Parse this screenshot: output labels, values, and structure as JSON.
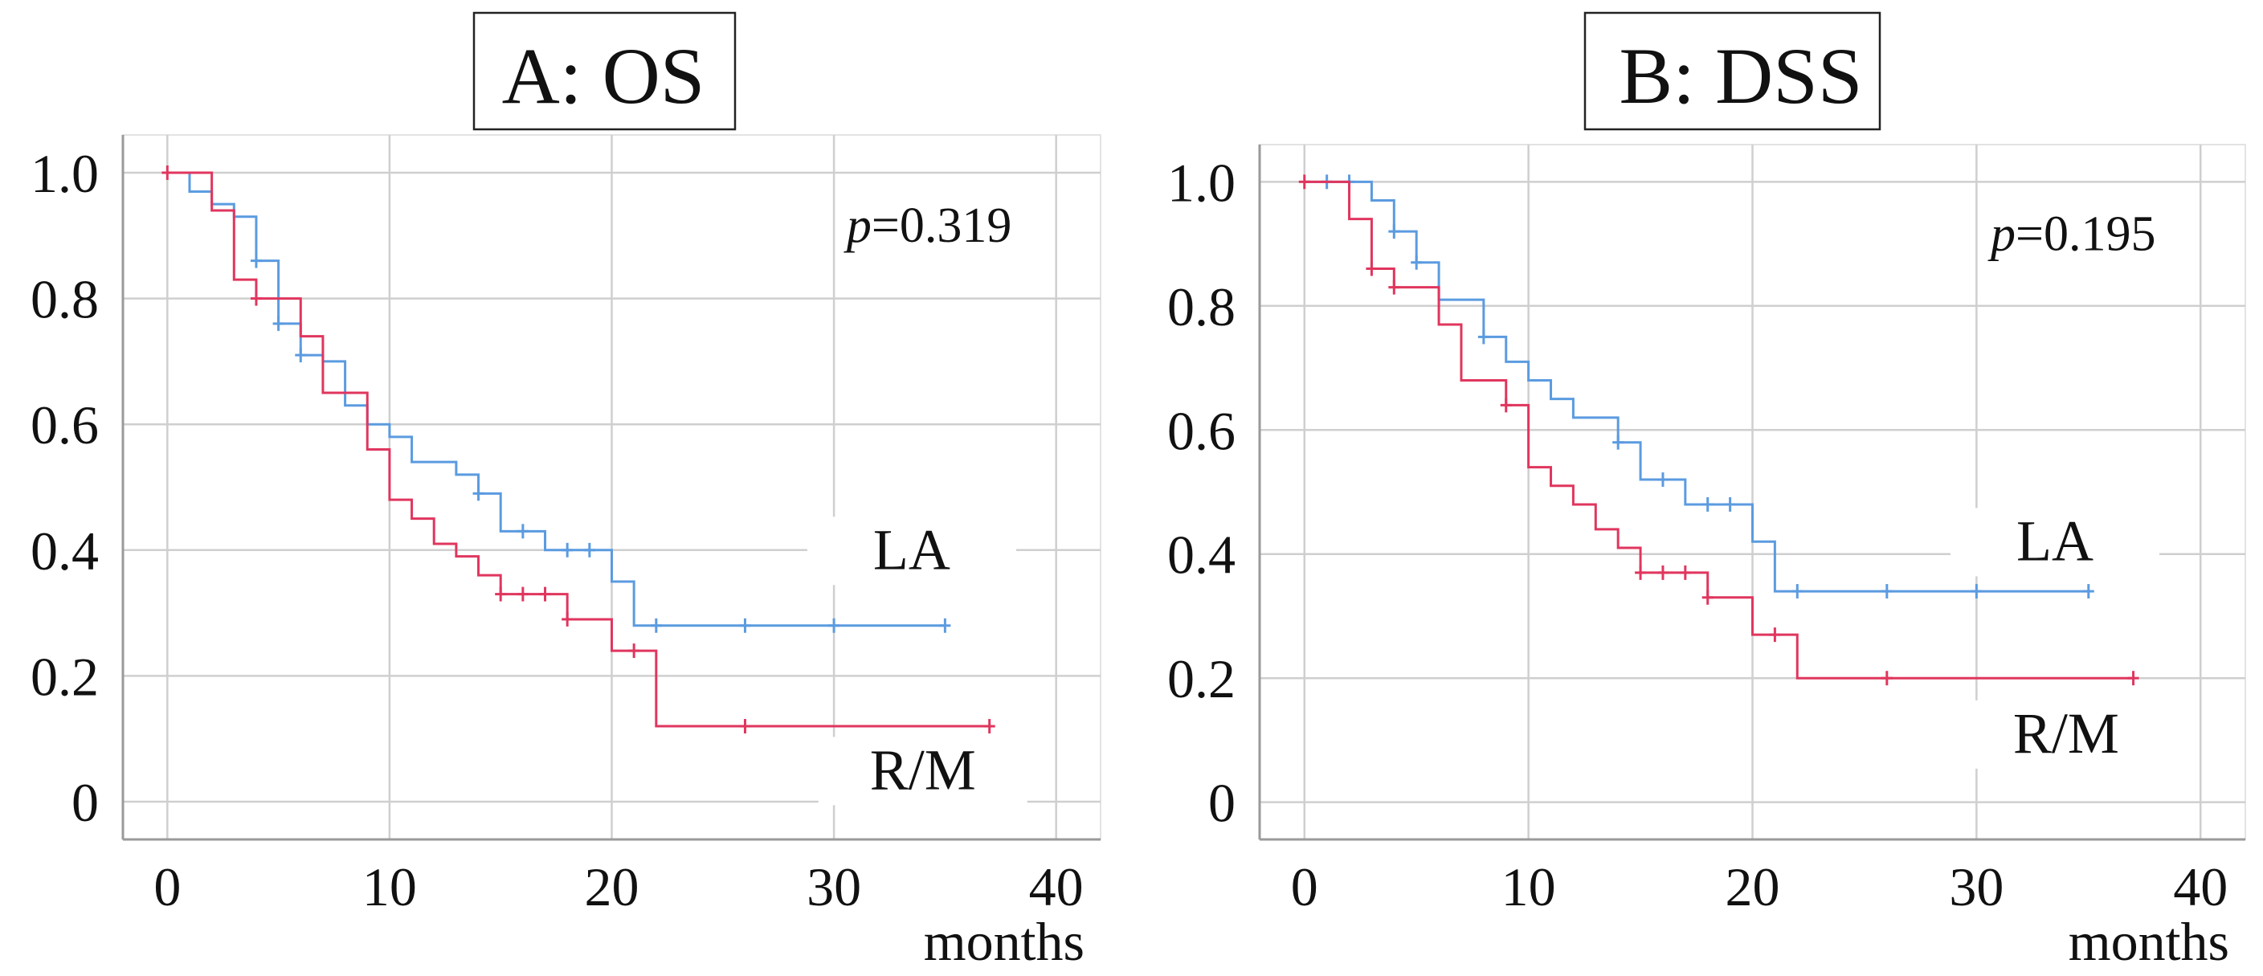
{
  "chart_data": [
    {
      "type": "line",
      "title": "A: OS",
      "xlabel": "months",
      "ylabel": "",
      "xlim": [
        -2,
        42
      ],
      "ylim": [
        -0.06,
        1.06
      ],
      "xticks": [
        0,
        10,
        20,
        30,
        40
      ],
      "yticks": [
        0,
        0.2,
        0.4,
        0.6,
        0.8,
        1.0
      ],
      "ytick_labels": [
        "0",
        "0.2",
        "0.4",
        "0.6",
        "0.8",
        "1.0"
      ],
      "grid": true,
      "annotation": {
        "prefix": "p",
        "text": "=0.319",
        "x": 38,
        "y": 0.89
      },
      "series": [
        {
          "name": "LA",
          "color": "#5b9be0",
          "label_pos": {
            "x": 33.5,
            "y": 0.37
          },
          "steps": [
            [
              0,
              1.0
            ],
            [
              1,
              0.97
            ],
            [
              2,
              0.95
            ],
            [
              3,
              0.93
            ],
            [
              4,
              0.86
            ],
            [
              5,
              0.76
            ],
            [
              6,
              0.71
            ],
            [
              7,
              0.7
            ],
            [
              8,
              0.63
            ],
            [
              9,
              0.6
            ],
            [
              10,
              0.58
            ],
            [
              11,
              0.54
            ],
            [
              13,
              0.52
            ],
            [
              14,
              0.49
            ],
            [
              15,
              0.43
            ],
            [
              17,
              0.4
            ],
            [
              20,
              0.35
            ],
            [
              21,
              0.28
            ],
            [
              35,
              0.28
            ]
          ],
          "censors": [
            [
              4,
              0.86
            ],
            [
              5,
              0.76
            ],
            [
              6,
              0.71
            ],
            [
              14,
              0.49
            ],
            [
              16,
              0.43
            ],
            [
              18,
              0.4
            ],
            [
              19,
              0.4
            ],
            [
              22,
              0.28
            ],
            [
              26,
              0.28
            ],
            [
              30,
              0.28
            ],
            [
              35,
              0.28
            ]
          ]
        },
        {
          "name": "R/M",
          "color": "#e0365e",
          "label_pos": {
            "x": 34,
            "y": 0.02
          },
          "steps": [
            [
              0,
              1.0
            ],
            [
              2,
              0.94
            ],
            [
              3,
              0.83
            ],
            [
              4,
              0.8
            ],
            [
              6,
              0.74
            ],
            [
              7,
              0.65
            ],
            [
              9,
              0.56
            ],
            [
              10,
              0.48
            ],
            [
              11,
              0.45
            ],
            [
              12,
              0.41
            ],
            [
              13,
              0.39
            ],
            [
              14,
              0.36
            ],
            [
              15,
              0.33
            ],
            [
              18,
              0.29
            ],
            [
              20,
              0.24
            ],
            [
              22,
              0.12
            ],
            [
              37,
              0.12
            ]
          ],
          "censors": [
            [
              0,
              1.0
            ],
            [
              4,
              0.8
            ],
            [
              15,
              0.33
            ],
            [
              16,
              0.33
            ],
            [
              17,
              0.33
            ],
            [
              18,
              0.29
            ],
            [
              21,
              0.24
            ],
            [
              26,
              0.12
            ],
            [
              37,
              0.12
            ]
          ]
        }
      ]
    },
    {
      "type": "line",
      "title": "B: DSS",
      "xlabel": "months",
      "ylabel": "",
      "xlim": [
        -2,
        42
      ],
      "ylim": [
        -0.06,
        1.06
      ],
      "xticks": [
        0,
        10,
        20,
        30,
        40
      ],
      "yticks": [
        0,
        0.2,
        0.4,
        0.6,
        0.8,
        1.0
      ],
      "ytick_labels": [
        "0",
        "0.2",
        "0.4",
        "0.6",
        "0.8",
        "1.0"
      ],
      "grid": true,
      "annotation": {
        "prefix": "p",
        "text": "=0.195",
        "x": 38,
        "y": 0.89
      },
      "series": [
        {
          "name": "LA",
          "color": "#5b9be0",
          "label_pos": {
            "x": 33.5,
            "y": 0.39
          },
          "steps": [
            [
              0,
              1.0
            ],
            [
              3,
              0.97
            ],
            [
              4,
              0.92
            ],
            [
              5,
              0.87
            ],
            [
              6,
              0.81
            ],
            [
              8,
              0.75
            ],
            [
              9,
              0.71
            ],
            [
              10,
              0.68
            ],
            [
              11,
              0.65
            ],
            [
              12,
              0.62
            ],
            [
              14,
              0.58
            ],
            [
              15,
              0.52
            ],
            [
              17,
              0.48
            ],
            [
              20,
              0.42
            ],
            [
              21,
              0.34
            ],
            [
              35,
              0.34
            ]
          ],
          "censors": [
            [
              1,
              1.0
            ],
            [
              2,
              1.0
            ],
            [
              4,
              0.92
            ],
            [
              5,
              0.87
            ],
            [
              8,
              0.75
            ],
            [
              14,
              0.58
            ],
            [
              16,
              0.52
            ],
            [
              18,
              0.48
            ],
            [
              19,
              0.48
            ],
            [
              22,
              0.34
            ],
            [
              26,
              0.34
            ],
            [
              30,
              0.34
            ],
            [
              35,
              0.34
            ]
          ]
        },
        {
          "name": "R/M",
          "color": "#e0365e",
          "label_pos": {
            "x": 34,
            "y": 0.08
          },
          "steps": [
            [
              0,
              1.0
            ],
            [
              2,
              0.94
            ],
            [
              3,
              0.86
            ],
            [
              4,
              0.83
            ],
            [
              6,
              0.77
            ],
            [
              7,
              0.68
            ],
            [
              9,
              0.64
            ],
            [
              10,
              0.54
            ],
            [
              11,
              0.51
            ],
            [
              12,
              0.48
            ],
            [
              13,
              0.44
            ],
            [
              14,
              0.41
            ],
            [
              15,
              0.37
            ],
            [
              18,
              0.33
            ],
            [
              20,
              0.27
            ],
            [
              22,
              0.2
            ],
            [
              37,
              0.2
            ]
          ],
          "censors": [
            [
              0,
              1.0
            ],
            [
              3,
              0.86
            ],
            [
              4,
              0.83
            ],
            [
              9,
              0.64
            ],
            [
              15,
              0.37
            ],
            [
              16,
              0.37
            ],
            [
              17,
              0.37
            ],
            [
              18,
              0.33
            ],
            [
              21,
              0.27
            ],
            [
              26,
              0.2
            ],
            [
              37,
              0.2
            ]
          ]
        }
      ]
    }
  ]
}
